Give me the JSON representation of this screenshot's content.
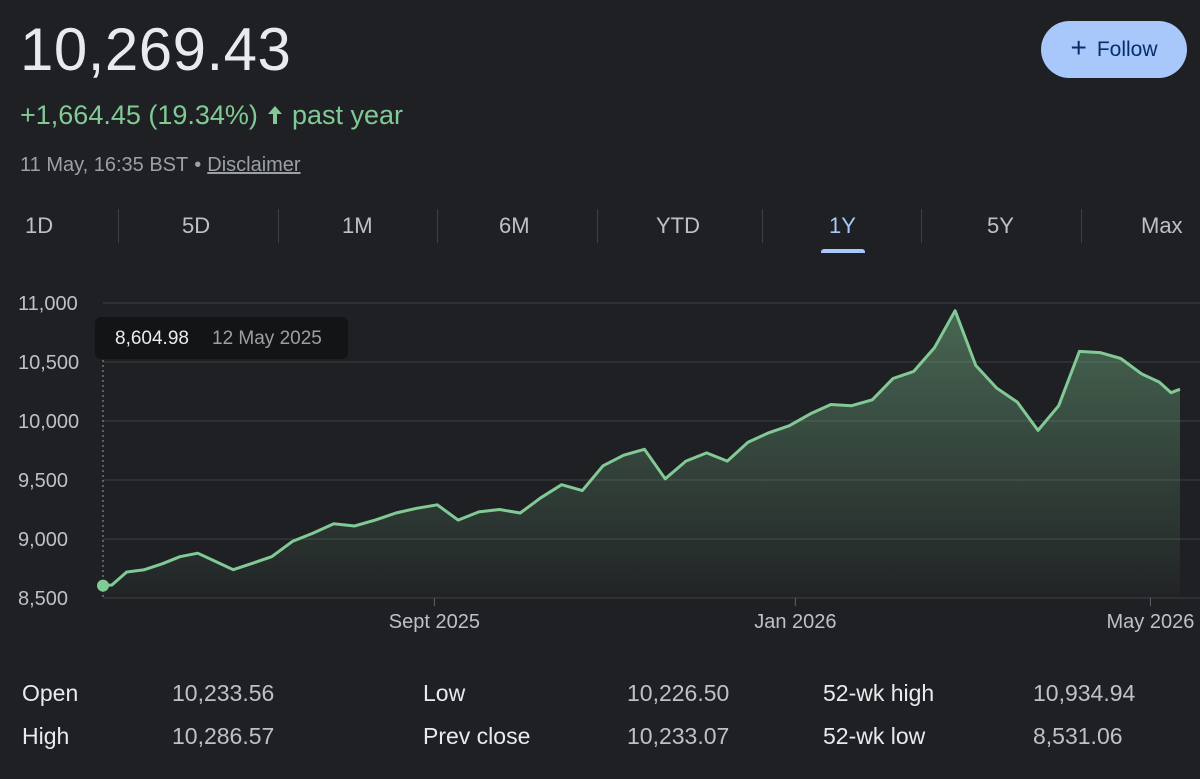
{
  "quote": {
    "price": "10,269.43",
    "change": "+1,664.45 (19.34%)",
    "change_period": "past year",
    "timestamp": "11 May, 16:35 BST",
    "separator": "•",
    "disclaimer": "Disclaimer",
    "follow_label": "Follow",
    "positive_color": "#81c995"
  },
  "tabs": [
    {
      "label": "1D",
      "active": false
    },
    {
      "label": "5D",
      "active": false
    },
    {
      "label": "1M",
      "active": false
    },
    {
      "label": "6M",
      "active": false
    },
    {
      "label": "YTD",
      "active": false
    },
    {
      "label": "1Y",
      "active": true
    },
    {
      "label": "5Y",
      "active": false
    },
    {
      "label": "Max",
      "active": false
    }
  ],
  "tooltip": {
    "value": "8,604.98",
    "date": "12 May 2025"
  },
  "chart_data": {
    "type": "area",
    "ylim": [
      8500,
      11000
    ],
    "y_ticks": [
      "11,000",
      "10,500",
      "10,000",
      "9,500",
      "9,000",
      "8,500"
    ],
    "y_tick_values": [
      11000,
      10500,
      10000,
      9500,
      9000,
      8500
    ],
    "x_labels": [
      "Sept 2025",
      "Jan 2026",
      "May 2026"
    ],
    "x_label_dates": [
      "2025-09-01",
      "2026-01-01",
      "2026-05-01"
    ],
    "x_start": "2025-05-12",
    "x_end": "2026-05-11",
    "line_color": "#81c995",
    "grid": true,
    "x": [
      "2025-05-12",
      "2025-05-15",
      "2025-05-20",
      "2025-05-26",
      "2025-06-01",
      "2025-06-07",
      "2025-06-13",
      "2025-06-19",
      "2025-06-25",
      "2025-07-01",
      "2025-07-08",
      "2025-07-15",
      "2025-07-22",
      "2025-07-29",
      "2025-08-05",
      "2025-08-12",
      "2025-08-19",
      "2025-08-26",
      "2025-09-02",
      "2025-09-09",
      "2025-09-16",
      "2025-09-23",
      "2025-09-30",
      "2025-10-07",
      "2025-10-14",
      "2025-10-21",
      "2025-10-28",
      "2025-11-04",
      "2025-11-11",
      "2025-11-18",
      "2025-11-25",
      "2025-12-02",
      "2025-12-09",
      "2025-12-16",
      "2025-12-23",
      "2025-12-30",
      "2026-01-06",
      "2026-01-13",
      "2026-01-20",
      "2026-01-27",
      "2026-02-03",
      "2026-02-10",
      "2026-02-17",
      "2026-02-24",
      "2026-03-03",
      "2026-03-10",
      "2026-03-17",
      "2026-03-24",
      "2026-03-31",
      "2026-04-07",
      "2026-04-14",
      "2026-04-21",
      "2026-04-28",
      "2026-05-04",
      "2026-05-08",
      "2026-05-11"
    ],
    "values": [
      8604.98,
      8610,
      8720,
      8740,
      8790,
      8850,
      8880,
      8810,
      8740,
      8790,
      8850,
      8980,
      9050,
      9130,
      9110,
      9160,
      9220,
      9260,
      9290,
      9160,
      9230,
      9250,
      9220,
      9350,
      9460,
      9410,
      9620,
      9710,
      9760,
      9510,
      9660,
      9730,
      9660,
      9820,
      9900,
      9960,
      10060,
      10140,
      10130,
      10180,
      10360,
      10420,
      10620,
      10934.94,
      10470,
      10280,
      10160,
      9920,
      10130,
      10590,
      10580,
      10530,
      10400,
      10330,
      10240,
      10269.43
    ]
  },
  "stats": [
    {
      "label": "Open",
      "value": "10,233.56"
    },
    {
      "label": "High",
      "value": "10,286.57"
    },
    {
      "label": "Low",
      "value": "10,226.50"
    },
    {
      "label": "Prev close",
      "value": "10,233.07"
    },
    {
      "label": "52-wk high",
      "value": "10,934.94"
    },
    {
      "label": "52-wk low",
      "value": "8,531.06"
    }
  ]
}
